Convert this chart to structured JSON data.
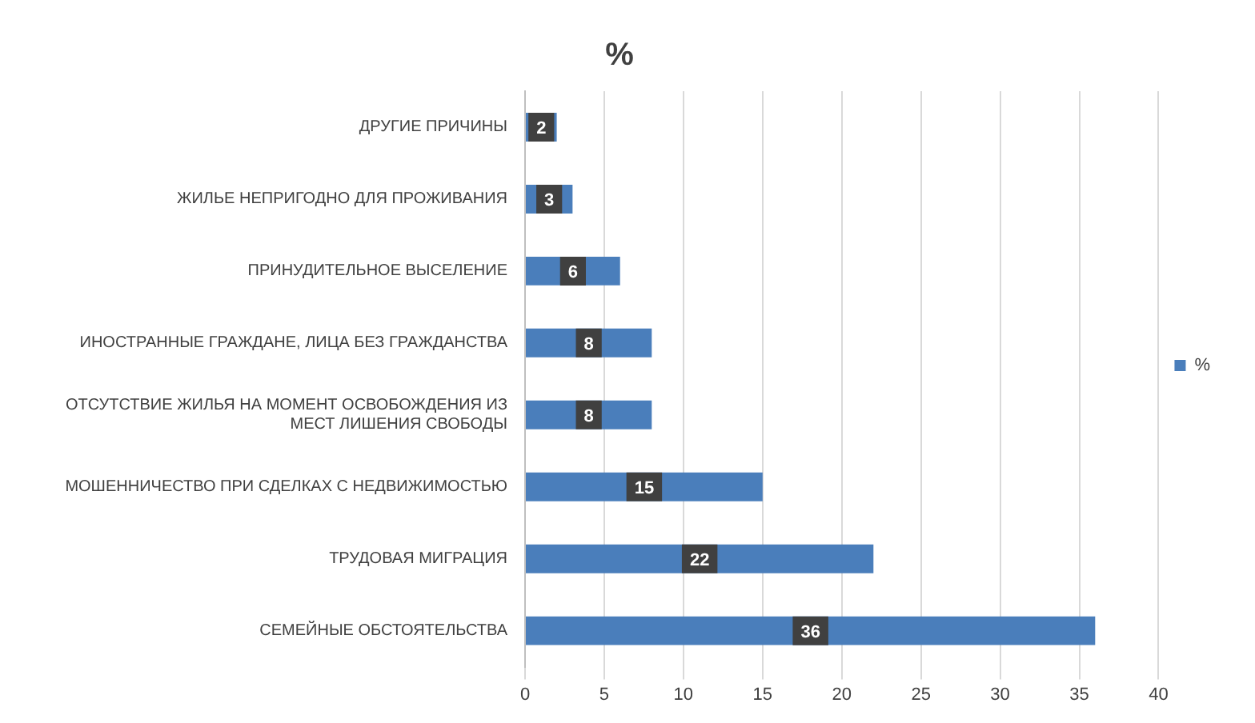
{
  "chart_data": {
    "type": "bar",
    "orientation": "horizontal",
    "title": "%",
    "categories": [
      "ДРУГИЕ ПРИЧИНЫ",
      "ЖИЛЬЕ НЕПРИГОДНО ДЛЯ ПРОЖИВАНИЯ",
      "ПРИНУДИТЕЛЬНОЕ ВЫСЕЛЕНИЕ",
      "ИНОСТРАННЫЕ ГРАЖДАНЕ, ЛИЦА БЕЗ ГРАЖДАНСТВА",
      "ОТСУТСТВИЕ ЖИЛЬЯ НА МОМЕНТ ОСВОБОЖДЕНИЯ ИЗ МЕСТ ЛИШЕНИЯ СВОБОДЫ",
      "МОШЕННИЧЕСТВО ПРИ СДЕЛКАХ С НЕДВИЖИМОСТЬЮ",
      "ТРУДОВАЯ МИГРАЦИЯ",
      "СЕМЕЙНЫЕ ОБСТОЯТЕЛЬСТВА"
    ],
    "series": [
      {
        "name": "%",
        "color": "#4a7ebb",
        "values": [
          2,
          3,
          6,
          8,
          8,
          15,
          22,
          36
        ]
      }
    ],
    "xlim": [
      0,
      40
    ],
    "xticks": [
      0,
      5,
      10,
      15,
      20,
      25,
      30,
      35,
      40
    ],
    "grid": "x",
    "legend": "right",
    "data_labels": true
  }
}
